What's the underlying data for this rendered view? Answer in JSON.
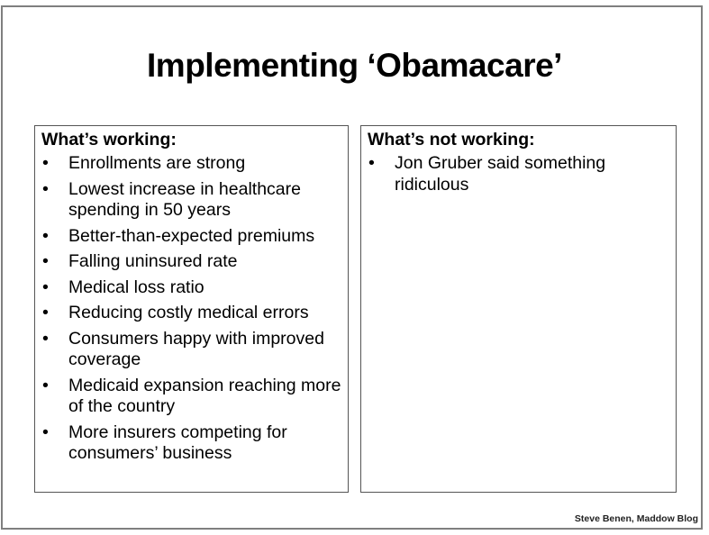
{
  "title": "Implementing ‘Obamacare’",
  "working": {
    "heading": "What’s working:",
    "items": [
      "Enrollments are strong",
      "Lowest increase in healthcare spending in 50 years",
      "Better-than-expected premiums",
      "Falling uninsured rate",
      "Medical loss ratio",
      "Reducing costly medical errors",
      "Consumers happy with improved coverage",
      "Medicaid expansion reaching more of the country",
      "More insurers competing for consumers’ business"
    ]
  },
  "not_working": {
    "heading": "What’s not working:",
    "items": [
      "Jon Gruber said something ridiculous"
    ]
  },
  "bullet": "•",
  "footer": "Steve Benen, Maddow Blog"
}
